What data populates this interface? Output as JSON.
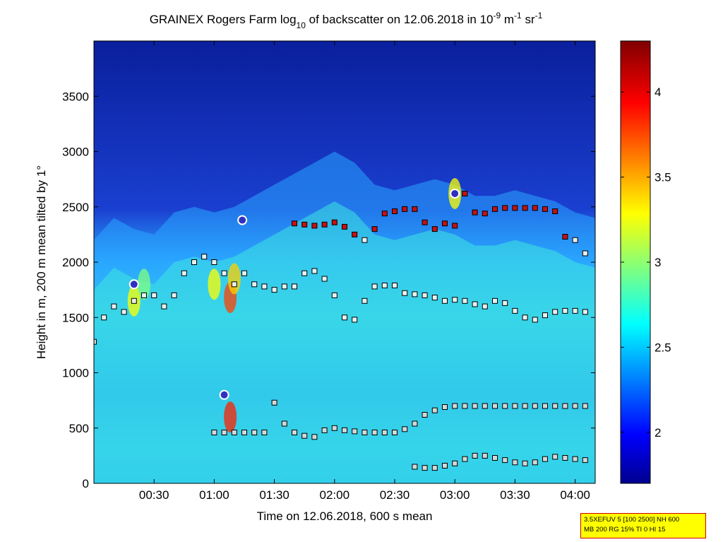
{
  "figure": {
    "title_prefix": "GRAINEX Rogers Farm log",
    "title_sub": "10",
    "title_mid": " of backscatter on 12.06.2018 in 10",
    "title_exp1": "-9",
    "title_unit1": " m",
    "title_exp2": "-1",
    "title_unit2": " sr",
    "title_exp3": "-1",
    "info_line1": "3.5XEFUV 5 [100 2500] NH 600",
    "info_line2": "MB 200 RG 15% TI 0 HI 15"
  },
  "colors": {
    "low": "#0a1f9c",
    "mid_low": "#1e90ff",
    "mid": "#19e5e5",
    "mid_high": "#80ff80",
    "high": "#ffff00",
    "very_high": "#ff0000",
    "max": "#800000",
    "marker_outline": "#000000",
    "cloud_base": "#7a1030"
  },
  "chart_data": {
    "type": "heatmap",
    "title": "GRAINEX Rogers Farm log10 of backscatter on 12.06.2018 in 10^-9 m^-1 sr^-1",
    "xlabel": "Time on 12.06.2018, 600 s mean",
    "ylabel": "Height in m, 200 m mean tilted by 1°",
    "x_ticks": [
      "00:30",
      "01:00",
      "01:30",
      "02:00",
      "02:30",
      "03:00",
      "03:30",
      "04:00"
    ],
    "x_tick_minutes": [
      30,
      60,
      90,
      120,
      150,
      180,
      210,
      240
    ],
    "xlim_minutes": [
      0,
      250
    ],
    "y_ticks": [
      0,
      500,
      1000,
      1500,
      2000,
      2500,
      3000,
      3500
    ],
    "ylim": [
      0,
      4000
    ],
    "colorbar": {
      "ticks": [
        2,
        2.5,
        3,
        3.5,
        4
      ],
      "range": [
        1.7,
        4.3
      ],
      "colormap": "jet"
    },
    "series": [
      {
        "marker": "square",
        "x_minutes": [
          0,
          5,
          10,
          15,
          20,
          25,
          30,
          35,
          40,
          45,
          50,
          55,
          60,
          65,
          70,
          75,
          80,
          85,
          90,
          95,
          100,
          105,
          110,
          115,
          120,
          125,
          130,
          135,
          140,
          145,
          150,
          155,
          160,
          165,
          170,
          175,
          180,
          185,
          190,
          195,
          200,
          205,
          210,
          215,
          220,
          225,
          230,
          235,
          240,
          245
        ],
        "y": [
          1280,
          1500,
          1600,
          1550,
          1650,
          1700,
          1700,
          1600,
          1700,
          1900,
          2000,
          2050,
          2000,
          1900,
          1800,
          1900,
          1800,
          1780,
          1750,
          1780,
          1780,
          1900,
          1920,
          1850,
          1700,
          1500,
          1480,
          1650,
          1780,
          1790,
          1790,
          1720,
          1710,
          1700,
          1680,
          1650,
          1660,
          1650,
          1620,
          1600,
          1650,
          1630,
          1560,
          1500,
          1480,
          1520,
          1550,
          1560,
          1560,
          1550
        ]
      },
      {
        "marker": "square",
        "x_minutes": [
          100,
          105,
          110,
          115,
          120,
          125,
          130,
          135,
          140,
          145,
          150,
          155,
          160,
          165,
          170,
          175,
          180,
          185,
          190,
          195,
          200,
          205,
          210,
          215,
          220,
          225,
          230,
          235,
          240,
          245
        ],
        "y": [
          2350,
          2340,
          2330,
          2340,
          2360,
          2320,
          2250,
          2200,
          2300,
          2440,
          2460,
          2480,
          2480,
          2360,
          2300,
          2350,
          2330,
          2620,
          2450,
          2440,
          2480,
          2490,
          2490,
          2490,
          2490,
          2480,
          2460,
          2230,
          2200,
          2080
        ]
      },
      {
        "marker": "square",
        "x_minutes": [
          60,
          65,
          70,
          75,
          80,
          85,
          90,
          95,
          100,
          105,
          110,
          115,
          120,
          125,
          130,
          135,
          140,
          145,
          150,
          155,
          160,
          165,
          170,
          175,
          180,
          185,
          190,
          195,
          200,
          205,
          210,
          215,
          220,
          225,
          230,
          235,
          240,
          245
        ],
        "y": [
          460,
          460,
          460,
          460,
          460,
          460,
          730,
          540,
          460,
          430,
          420,
          480,
          500,
          480,
          470,
          460,
          460,
          460,
          460,
          490,
          540,
          620,
          660,
          690,
          700,
          700,
          700,
          700,
          700,
          700,
          700,
          700,
          700,
          700,
          700,
          700,
          700,
          700
        ]
      },
      {
        "marker": "square",
        "x_minutes": [
          160,
          165,
          170,
          175,
          180,
          185,
          190,
          195,
          200,
          205,
          210,
          215,
          220,
          225,
          230,
          235,
          240,
          245
        ],
        "y": [
          150,
          140,
          140,
          160,
          180,
          220,
          250,
          250,
          230,
          210,
          190,
          180,
          190,
          220,
          240,
          230,
          220,
          210
        ]
      }
    ],
    "annotations": [
      {
        "type": "circle",
        "x_minutes": 180,
        "y": 2620
      },
      {
        "type": "circle",
        "x_minutes": 74,
        "y": 2380
      },
      {
        "type": "circle",
        "x_minutes": 20,
        "y": 1800
      },
      {
        "type": "circle",
        "x_minutes": 65,
        "y": 800
      }
    ]
  }
}
